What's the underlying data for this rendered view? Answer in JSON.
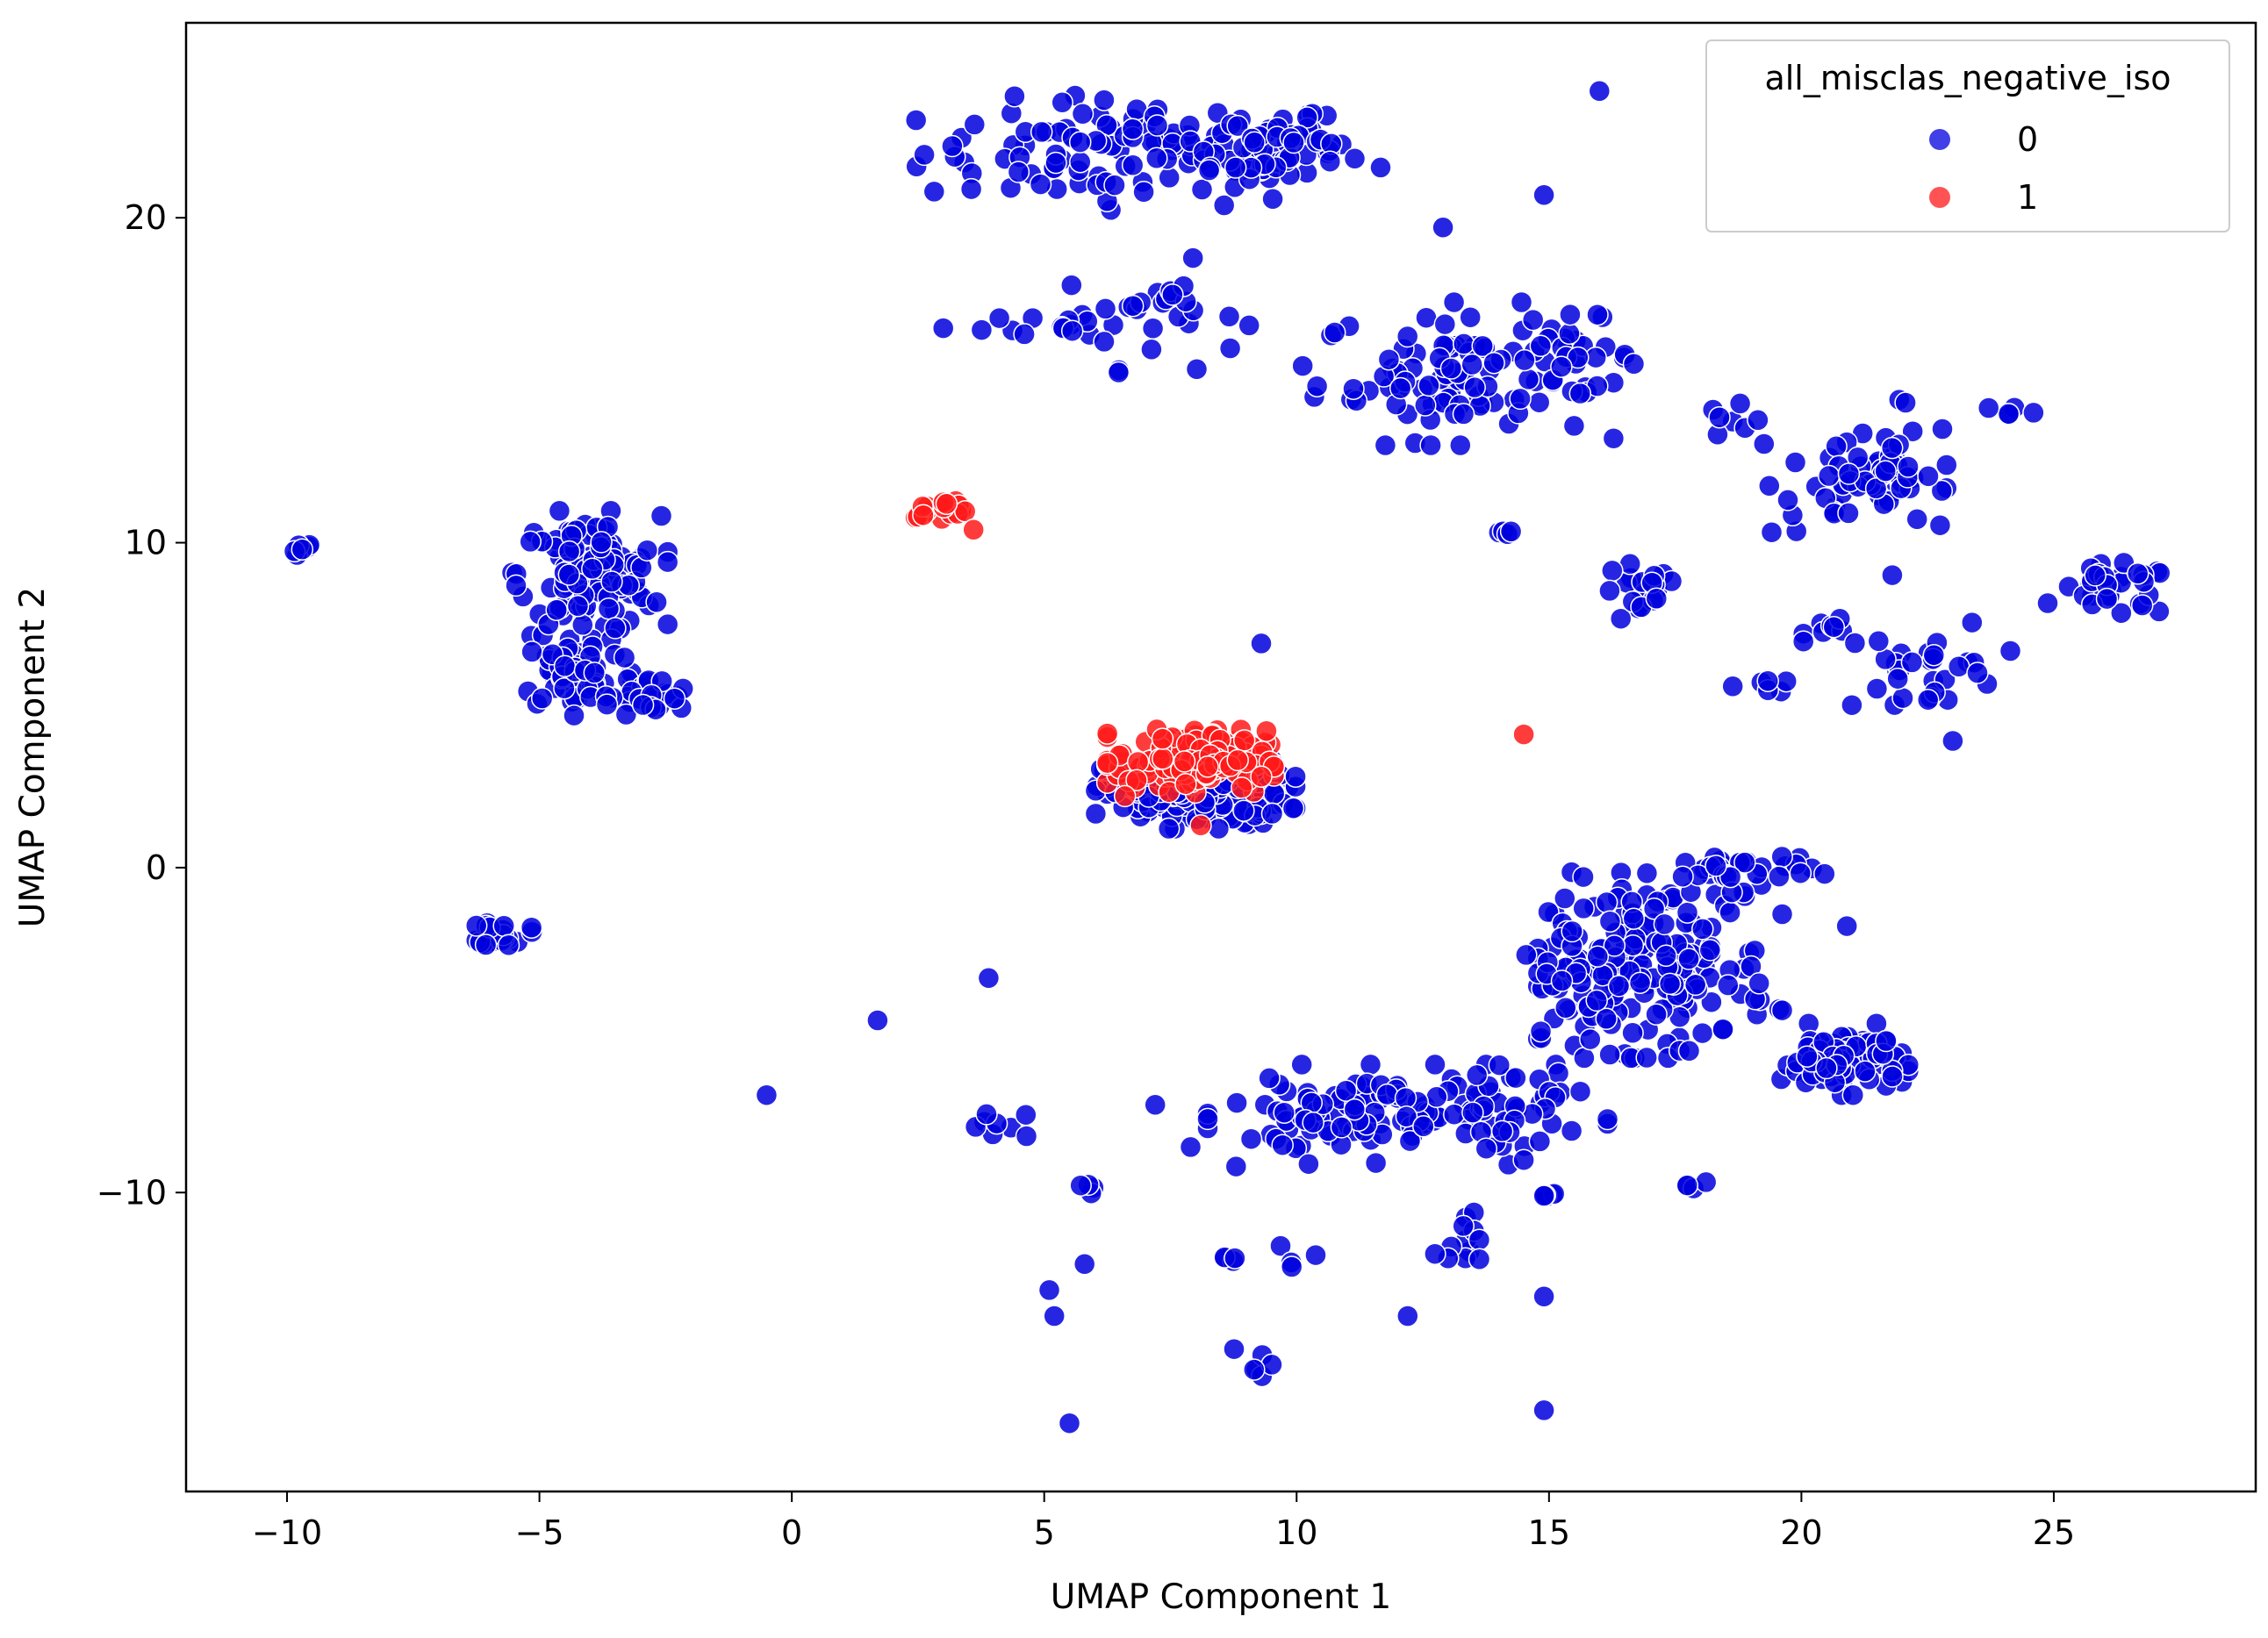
{
  "chart_data": {
    "type": "scatter",
    "title": "",
    "xlabel": "UMAP Component 1",
    "ylabel": "UMAP Component 2",
    "xlim": [
      -12,
      29
    ],
    "ylim": [
      -19.2,
      26
    ],
    "x_ticks": [
      -10,
      -5,
      0,
      5,
      10,
      15,
      20,
      25
    ],
    "x_tick_labels": [
      "−10",
      "−5",
      "0",
      "5",
      "10",
      "15",
      "20",
      "25"
    ],
    "y_ticks": [
      -10,
      0,
      10,
      20
    ],
    "y_tick_labels": [
      "−10",
      "0",
      "10",
      "20"
    ],
    "grid": false,
    "legend": {
      "title": "all_misclas_negative_iso",
      "placement": "top-right",
      "entries": [
        {
          "label": "0",
          "color": "#0000dd"
        },
        {
          "label": "1",
          "color": "#ff1a1a"
        }
      ]
    },
    "series": [
      {
        "name": "0",
        "color": "#0000dd",
        "clusters": [
          {
            "cx": 7.0,
            "cy": 22.0,
            "sx": 2.2,
            "sy": 0.8,
            "n": 120
          },
          {
            "cx": 9.0,
            "cy": 22.2,
            "sx": 0.8,
            "sy": 0.6,
            "n": 30
          },
          {
            "cx": 10.7,
            "cy": 22.1,
            "sx": 0.3,
            "sy": 0.3,
            "n": 6
          },
          {
            "cx": 5.5,
            "cy": 16.8,
            "sx": 0.8,
            "sy": 0.3,
            "n": 15
          },
          {
            "cx": 7.3,
            "cy": 17.0,
            "sx": 0.8,
            "sy": 0.8,
            "n": 25
          },
          {
            "cx": 13.2,
            "cy": 15.2,
            "sx": 1.4,
            "sy": 1.0,
            "n": 90
          },
          {
            "cx": 15.2,
            "cy": 15.7,
            "sx": 0.8,
            "sy": 0.6,
            "n": 25
          },
          {
            "cx": 18.6,
            "cy": 13.7,
            "sx": 0.3,
            "sy": 0.3,
            "n": 8
          },
          {
            "cx": 21.0,
            "cy": 11.8,
            "sx": 0.8,
            "sy": 0.8,
            "n": 40
          },
          {
            "cx": 22.2,
            "cy": 12.2,
            "sx": 0.6,
            "sy": 1.0,
            "n": 25
          },
          {
            "cx": 23.9,
            "cy": 14.0,
            "sx": 0.2,
            "sy": 0.1,
            "n": 4
          },
          {
            "cx": 16.8,
            "cy": 8.4,
            "sx": 0.4,
            "sy": 0.5,
            "n": 20
          },
          {
            "cx": 14.0,
            "cy": 10.3,
            "sx": 0.2,
            "sy": 0.1,
            "n": 4
          },
          {
            "cx": 26.2,
            "cy": 8.5,
            "sx": 0.6,
            "sy": 0.4,
            "n": 30
          },
          {
            "cx": 20.7,
            "cy": 7.4,
            "sx": 0.3,
            "sy": 0.2,
            "n": 8
          },
          {
            "cx": 22.6,
            "cy": 6.2,
            "sx": 0.7,
            "sy": 0.7,
            "n": 30
          },
          {
            "cx": 19.3,
            "cy": 5.6,
            "sx": 0.3,
            "sy": 0.1,
            "n": 6
          },
          {
            "cx": -4.0,
            "cy": 9.0,
            "sx": 0.7,
            "sy": 0.9,
            "n": 120
          },
          {
            "cx": -4.2,
            "cy": 6.0,
            "sx": 0.6,
            "sy": 0.6,
            "n": 60
          },
          {
            "cx": -2.8,
            "cy": 5.2,
            "sx": 0.4,
            "sy": 0.3,
            "n": 30
          },
          {
            "cx": -9.7,
            "cy": 9.8,
            "sx": 0.15,
            "sy": 0.15,
            "n": 6
          },
          {
            "cx": -5.7,
            "cy": -2.0,
            "sx": 0.25,
            "sy": 0.2,
            "n": 20
          },
          {
            "cx": 8.0,
            "cy": 2.3,
            "sx": 0.9,
            "sy": 0.5,
            "n": 220
          },
          {
            "cx": 17.2,
            "cy": -3.0,
            "sx": 1.1,
            "sy": 1.3,
            "n": 160
          },
          {
            "cx": 15.6,
            "cy": -3.5,
            "sx": 0.6,
            "sy": 0.7,
            "n": 40
          },
          {
            "cx": 18.7,
            "cy": -0.1,
            "sx": 0.8,
            "sy": 0.3,
            "n": 35
          },
          {
            "cx": 20.8,
            "cy": -5.9,
            "sx": 0.6,
            "sy": 0.5,
            "n": 80
          },
          {
            "cx": 12.2,
            "cy": -7.6,
            "sx": 1.8,
            "sy": 0.7,
            "n": 100
          },
          {
            "cx": 10.2,
            "cy": -7.8,
            "sx": 0.5,
            "sy": 0.6,
            "n": 25
          },
          {
            "cx": 14.3,
            "cy": -7.4,
            "sx": 0.6,
            "sy": 0.6,
            "n": 25
          },
          {
            "cx": 13.4,
            "cy": -11.3,
            "sx": 0.3,
            "sy": 0.5,
            "n": 12
          },
          {
            "cx": 9.2,
            "cy": -15.2,
            "sx": 0.2,
            "sy": 0.3,
            "n": 6
          },
          {
            "cx": 10.0,
            "cy": -12.0,
            "sx": 0.2,
            "sy": 0.2,
            "n": 4
          },
          {
            "cx": 5.9,
            "cy": -9.9,
            "sx": 0.1,
            "sy": 0.1,
            "n": 4
          },
          {
            "cx": 3.9,
            "cy": -7.9,
            "sx": 0.4,
            "sy": 0.2,
            "n": 8
          },
          {
            "cx": 15.0,
            "cy": -10.0,
            "sx": 0.1,
            "sy": 0.1,
            "n": 4
          },
          {
            "cx": 17.9,
            "cy": -9.8,
            "sx": 0.1,
            "sy": 0.1,
            "n": 4
          },
          {
            "cx": 8.7,
            "cy": -12.0,
            "sx": 0.1,
            "sy": 0.1,
            "n": 4
          }
        ],
        "points": [
          [
            -0.5,
            -7.0
          ],
          [
            1.7,
            -4.7
          ],
          [
            3.9,
            -3.4
          ],
          [
            3.0,
            16.6
          ],
          [
            9.3,
            6.9
          ],
          [
            14.5,
            -9.0
          ],
          [
            12.9,
            19.7
          ],
          [
            14.9,
            20.7
          ],
          [
            16.0,
            23.9
          ],
          [
            5.2,
            -13.8
          ],
          [
            5.1,
            -13.0
          ],
          [
            5.5,
            -17.1
          ],
          [
            5.8,
            -12.2
          ],
          [
            7.2,
            -7.3
          ],
          [
            7.9,
            -8.6
          ],
          [
            8.8,
            -9.2
          ],
          [
            12.2,
            -13.8
          ],
          [
            14.9,
            -13.2
          ],
          [
            14.9,
            -16.7
          ],
          [
            21.0,
            5.0
          ],
          [
            21.8,
            9.0
          ],
          [
            23.0,
            3.9
          ],
          [
            14.9,
            -10.1
          ],
          [
            20.9,
            -1.8
          ],
          [
            24.6,
            14.0
          ]
        ]
      },
      {
        "name": "1",
        "color": "#ff1a1a",
        "clusters": [
          {
            "cx": 7.9,
            "cy": 3.3,
            "sx": 0.75,
            "sy": 0.45,
            "n": 180
          },
          {
            "cx": 3.0,
            "cy": 11.0,
            "sx": 0.25,
            "sy": 0.15,
            "n": 18
          }
        ],
        "points": [
          [
            14.5,
            4.1
          ],
          [
            3.6,
            10.4
          ],
          [
            8.1,
            1.3
          ],
          [
            6.6,
            2.2
          ],
          [
            9.3,
            2.8
          ]
        ]
      }
    ]
  }
}
